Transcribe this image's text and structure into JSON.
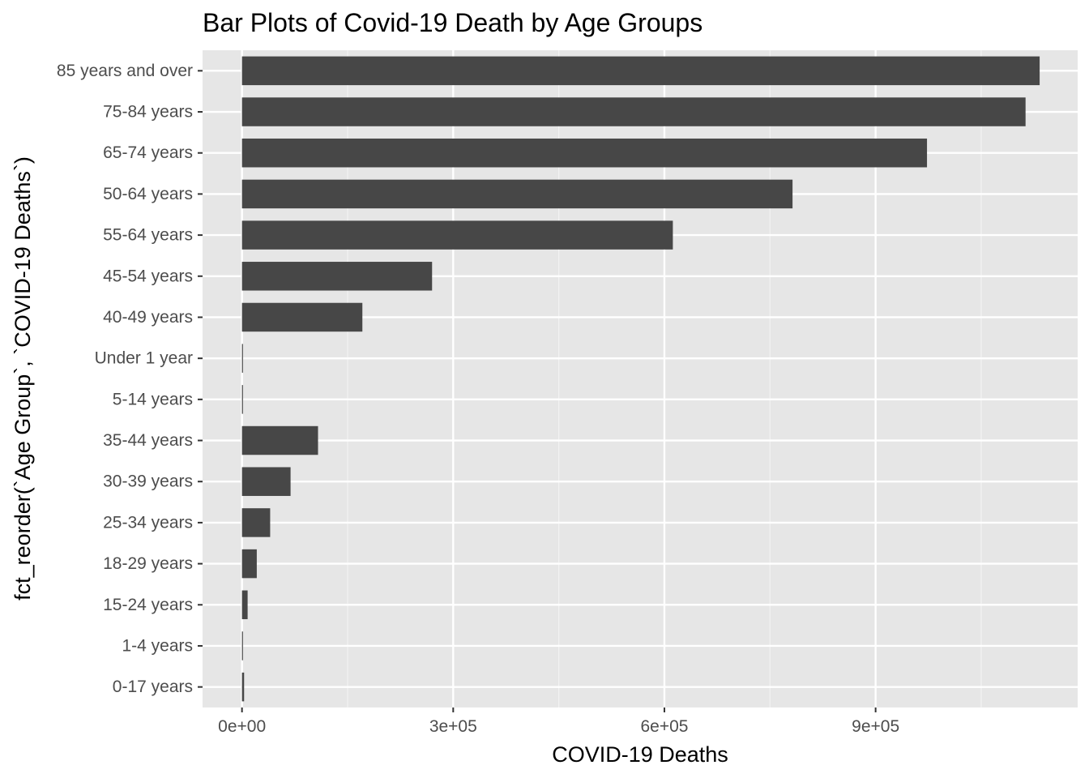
{
  "chart_data": {
    "type": "bar",
    "orientation": "horizontal",
    "title": "Bar Plots of Covid-19 Death by Age Groups",
    "xlabel": "COVID-19 Deaths",
    "ylabel": "fct_reorder(`Age Group`, `COVID-19 Deaths`)",
    "categories": [
      "85 years and over",
      "75-84 years",
      "65-74 years",
      "50-64 years",
      "55-64 years",
      "45-54 years",
      "40-49 years",
      "Under 1 year",
      "5-14 years",
      "35-44 years",
      "30-39 years",
      "25-34 years",
      "18-29 years",
      "15-24 years",
      "1-4 years",
      "0-17 years"
    ],
    "values": [
      1133000,
      1113000,
      973000,
      782000,
      612000,
      270000,
      171000,
      800,
      1000,
      108000,
      69000,
      40000,
      21000,
      8000,
      500,
      3000
    ],
    "xlim": [
      -56000,
      1187000
    ],
    "x_ticks": [
      0,
      300000,
      600000,
      900000
    ],
    "x_tick_labels": [
      "0e+00",
      "3e+05",
      "6e+05",
      "9e+05"
    ],
    "grid": true,
    "legend": "none",
    "colors": {
      "bar": "#474747",
      "panel": "#e6e6e6",
      "grid_major": "#ffffff",
      "grid_minor": "#f2f2f2",
      "tick_text": "#4d4d4d",
      "tick_mark": "#333333"
    }
  }
}
